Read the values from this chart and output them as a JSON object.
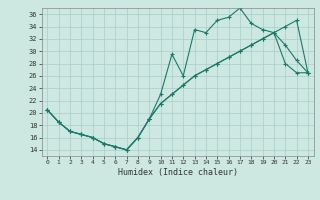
{
  "title": "",
  "xlabel": "Humidex (Indice chaleur)",
  "background_color": "#cce8e0",
  "line_color": "#1a7a6a",
  "ylim": [
    13,
    37
  ],
  "xlim": [
    -0.5,
    23.5
  ],
  "yticks": [
    14,
    16,
    18,
    20,
    22,
    24,
    26,
    28,
    30,
    32,
    34,
    36
  ],
  "xticks": [
    0,
    1,
    2,
    3,
    4,
    5,
    6,
    7,
    8,
    9,
    10,
    11,
    12,
    13,
    14,
    15,
    16,
    17,
    18,
    19,
    20,
    21,
    22,
    23
  ],
  "line1_x": [
    0,
    1,
    2,
    3,
    4,
    5,
    6,
    7,
    8,
    9,
    10,
    11,
    12,
    13,
    14,
    15,
    16,
    17,
    18,
    19,
    20,
    21,
    22,
    23
  ],
  "line1_y": [
    20.5,
    18.5,
    17,
    16.5,
    16,
    15,
    14.5,
    14,
    16,
    19,
    23,
    29.5,
    26,
    33.5,
    33,
    35,
    35.5,
    37,
    34.5,
    33.5,
    33,
    31,
    28.5,
    26.5
  ],
  "line2_x": [
    0,
    1,
    2,
    3,
    4,
    5,
    6,
    7,
    8,
    9,
    10,
    11,
    12,
    13,
    14,
    15,
    16,
    17,
    18,
    19,
    20,
    21,
    22,
    23
  ],
  "line2_y": [
    20.5,
    18.5,
    17,
    16.5,
    16,
    15,
    14.5,
    14,
    16,
    19,
    21.5,
    23,
    24.5,
    26,
    27,
    28,
    29,
    30,
    31,
    32,
    33,
    34,
    35,
    26.5
  ],
  "line3_x": [
    0,
    1,
    2,
    3,
    4,
    5,
    6,
    7,
    8,
    9,
    10,
    11,
    12,
    13,
    14,
    15,
    16,
    17,
    18,
    19,
    20,
    21,
    22,
    23
  ],
  "line3_y": [
    20.5,
    18.5,
    17,
    16.5,
    16,
    15,
    14.5,
    14,
    16,
    19,
    21.5,
    23,
    24.5,
    26,
    27,
    28,
    29,
    30,
    31,
    32,
    33,
    28,
    26.5,
    26.5
  ],
  "grid_color": "#aacccc",
  "tick_color": "#333333",
  "xlabel_fontsize": 6,
  "tick_fontsize": 5
}
